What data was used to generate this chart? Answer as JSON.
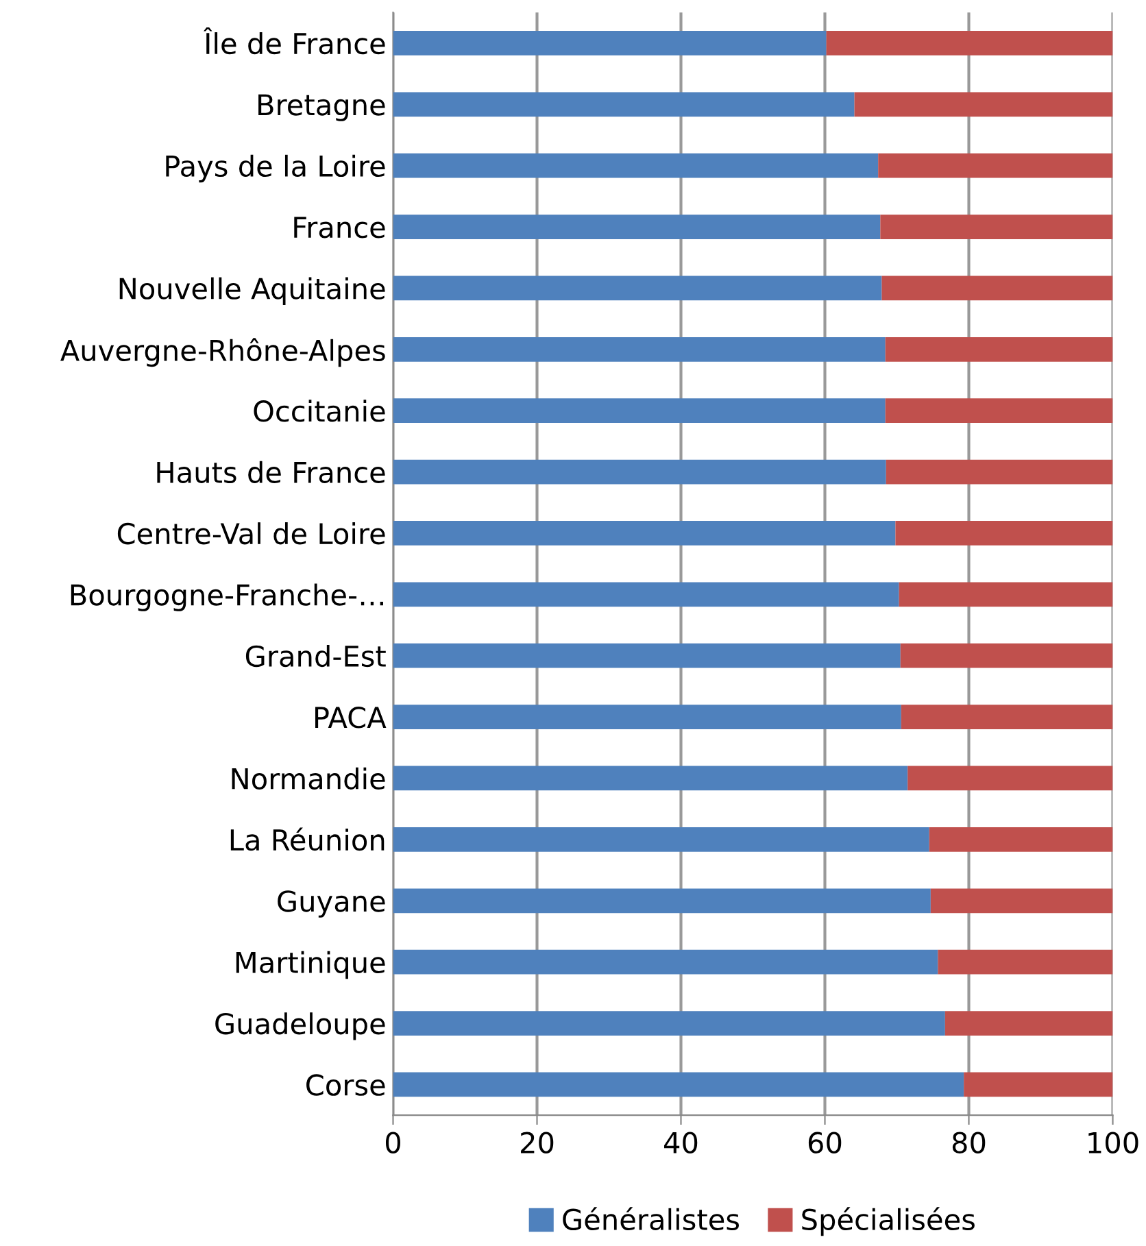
{
  "chart_data": {
    "type": "bar",
    "orientation": "horizontal",
    "stacked": true,
    "categories": [
      "Île de France",
      "Bretagne",
      "Pays de la Loire",
      "France",
      "Nouvelle Aquitaine",
      "Auvergne-Rhône-Alpes",
      "Occitanie",
      "Hauts de France",
      "Centre-Val de Loire",
      "Bourgogne-Franche-…",
      "Grand-Est",
      "PACA",
      "Normandie",
      "La Réunion",
      "Guyane",
      "Martinique",
      "Guadeloupe",
      "Corse"
    ],
    "series": [
      {
        "name": "Généralistes",
        "color": "#4f81bd",
        "values": [
          60.2,
          64.1,
          67.4,
          67.7,
          67.9,
          68.4,
          68.4,
          68.5,
          69.8,
          70.3,
          70.5,
          70.6,
          71.5,
          74.5,
          74.7,
          75.7,
          76.7,
          79.3
        ]
      },
      {
        "name": "Spécialisées",
        "color": "#c0504d",
        "values": [
          39.8,
          35.9,
          32.6,
          32.3,
          32.1,
          31.6,
          31.6,
          31.5,
          30.2,
          29.7,
          29.5,
          29.4,
          28.5,
          25.5,
          25.3,
          24.3,
          23.3,
          20.7
        ]
      }
    ],
    "xlim": [
      0,
      100
    ],
    "xticks": [
      0,
      20,
      40,
      60,
      80,
      100
    ],
    "grid": "x",
    "legend": "bottom"
  }
}
